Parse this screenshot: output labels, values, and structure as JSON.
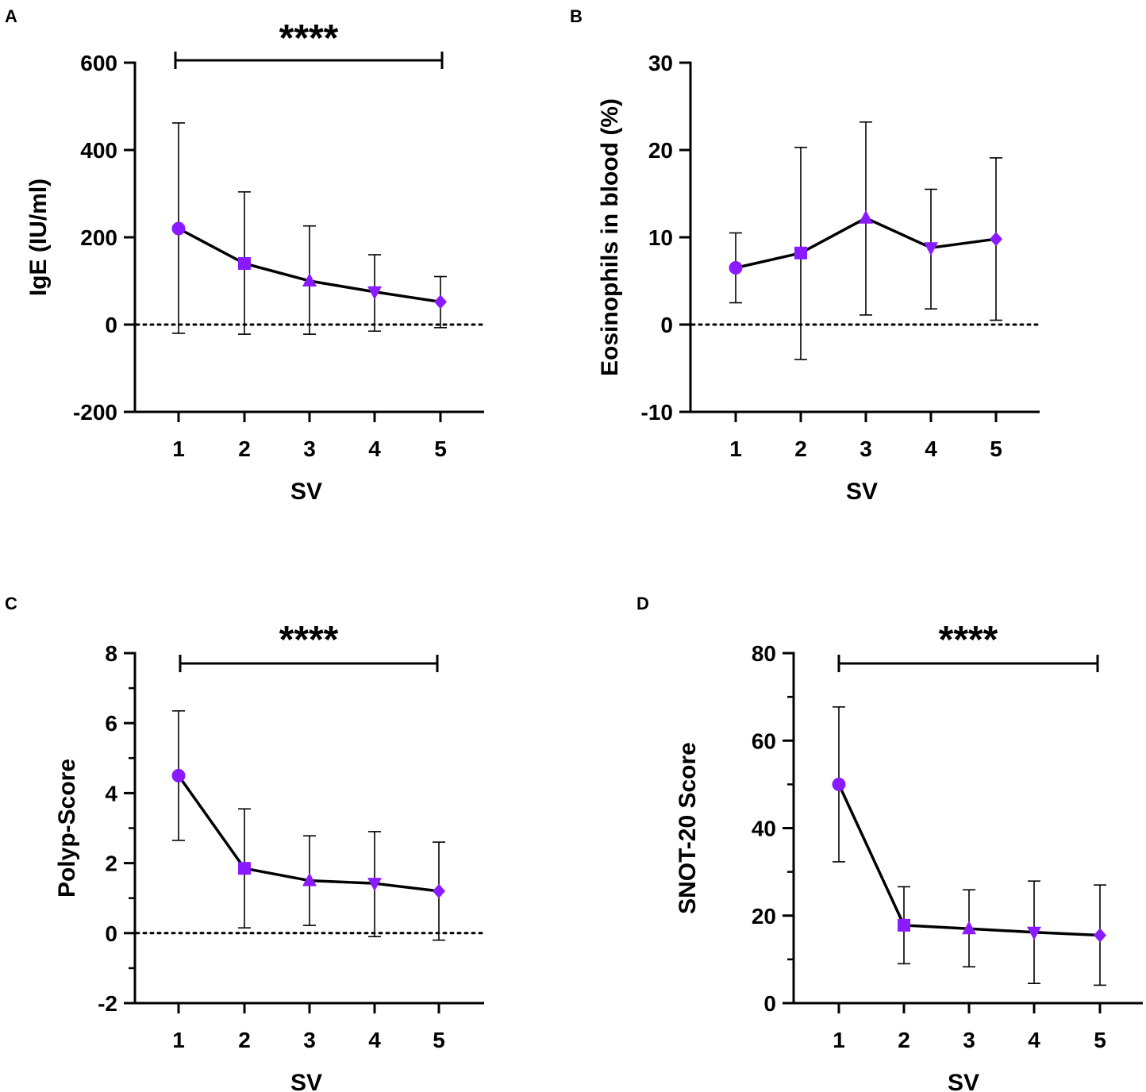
{
  "colors": {
    "marker": "#8a1aff",
    "line": "#000000"
  },
  "chart_data": [
    {
      "panel": "A",
      "type": "line",
      "xlabel": "SV",
      "ylabel": "IgE (IU/ml)",
      "categories": [
        "1",
        "2",
        "3",
        "4",
        "5"
      ],
      "ylim": [
        -200,
        600
      ],
      "yticks": [
        -200,
        0,
        200,
        400,
        600
      ],
      "yticklabels": [
        "-200",
        "0",
        "200",
        "400",
        "600"
      ],
      "minor_ticks": false,
      "series": [
        {
          "name": "IgE",
          "values": [
            220,
            140,
            100,
            75,
            52
          ],
          "err_low": [
            -20,
            -22,
            -22,
            -15,
            -7
          ],
          "err_high": [
            462,
            304,
            226,
            160,
            110
          ],
          "markers": [
            "circle",
            "square",
            "triangle-up",
            "triangle-down",
            "diamond"
          ]
        }
      ],
      "reference_line": 0,
      "significance": {
        "from": "1",
        "to": "5",
        "label": "****"
      }
    },
    {
      "panel": "B",
      "type": "line",
      "xlabel": "SV",
      "ylabel": "Eosinophils in blood (%)",
      "categories": [
        "1",
        "2",
        "3",
        "4",
        "5"
      ],
      "ylim": [
        -10,
        30
      ],
      "yticks": [
        -10,
        0,
        10,
        20,
        30
      ],
      "yticklabels": [
        "-10",
        "0",
        "10",
        "20",
        "30"
      ],
      "minor_ticks": false,
      "series": [
        {
          "name": "Eosinophils",
          "values": [
            6.5,
            8.2,
            12.2,
            8.8,
            9.8
          ],
          "err_low": [
            2.5,
            -4.0,
            1.1,
            1.8,
            0.5
          ],
          "err_high": [
            10.5,
            20.3,
            23.2,
            15.5,
            19.1
          ],
          "markers": [
            "circle",
            "square",
            "triangle-up",
            "triangle-down",
            "diamond"
          ]
        }
      ],
      "reference_line": 0,
      "significance": null
    },
    {
      "panel": "C",
      "type": "line",
      "xlabel": "SV",
      "ylabel": "Polyp-Score",
      "categories": [
        "1",
        "2",
        "3",
        "4",
        "5"
      ],
      "ylim": [
        -2,
        8
      ],
      "yticks": [
        -2,
        0,
        2,
        4,
        6,
        8
      ],
      "yticklabels": [
        "-2",
        "0",
        "2",
        "4",
        "6",
        "8"
      ],
      "minor_ticks": true,
      "series": [
        {
          "name": "Polyp-Score",
          "values": [
            4.5,
            1.85,
            1.5,
            1.42,
            1.2
          ],
          "err_low": [
            2.65,
            0.15,
            0.22,
            -0.1,
            -0.2
          ],
          "err_high": [
            6.35,
            3.55,
            2.78,
            2.9,
            2.6
          ],
          "markers": [
            "circle",
            "square",
            "triangle-up",
            "triangle-down",
            "diamond"
          ]
        }
      ],
      "reference_line": 0,
      "significance": {
        "from": "1",
        "to": "5",
        "label": "****"
      }
    },
    {
      "panel": "D",
      "type": "line",
      "xlabel": "SV",
      "ylabel": "SNOT-20 Score",
      "categories": [
        "1",
        "2",
        "3",
        "4",
        "5"
      ],
      "ylim": [
        0,
        80
      ],
      "yticks": [
        0,
        20,
        40,
        60,
        80
      ],
      "yticklabels": [
        "0",
        "20",
        "40",
        "60",
        "80"
      ],
      "minor_ticks": true,
      "series": [
        {
          "name": "SNOT-20 Score",
          "values": [
            50,
            17.8,
            17.0,
            16.2,
            15.5
          ],
          "err_low": [
            32.3,
            9.0,
            8.3,
            4.5,
            4.1
          ],
          "err_high": [
            67.7,
            26.6,
            25.9,
            27.9,
            27.0
          ],
          "markers": [
            "circle",
            "square",
            "triangle-up",
            "triangle-down",
            "diamond"
          ]
        }
      ],
      "reference_line": null,
      "significance": {
        "from": "1",
        "to": "5",
        "label": "****"
      }
    }
  ]
}
